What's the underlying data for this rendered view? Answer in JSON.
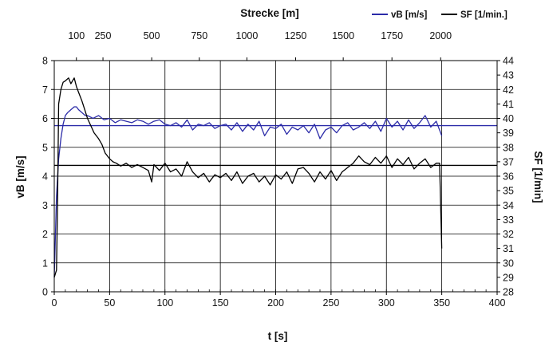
{
  "chart_data": {
    "type": "line",
    "title": "",
    "xlabel": "t [s]",
    "x2label": "Strecke [m]",
    "ylabel": "vB [m/s]",
    "y2label": "SF [1/min]",
    "xlim": [
      0,
      400
    ],
    "xticks": [
      "0",
      "50",
      "100",
      "150",
      "200",
      "250",
      "300",
      "350",
      "400"
    ],
    "x2ticks": [
      "100",
      "250",
      "500",
      "750",
      "1000",
      "1250",
      "1500",
      "1750",
      "2000"
    ],
    "x2tick_t": [
      20,
      44,
      88,
      131,
      174,
      218,
      261,
      305,
      349
    ],
    "ylim": [
      0,
      8
    ],
    "yticks": [
      "0",
      "1",
      "2",
      "3",
      "4",
      "5",
      "6",
      "7",
      "8"
    ],
    "y2lim": [
      28,
      44
    ],
    "y2ticks": [
      "28",
      "29",
      "30",
      "31",
      "32",
      "33",
      "34",
      "35",
      "36",
      "37",
      "38",
      "39",
      "40",
      "41",
      "42",
      "43",
      "44"
    ],
    "grid": true,
    "legend": "top-right",
    "reference_lines": [
      {
        "axis": "y",
        "value": 5.75,
        "color": "#2b2ba8"
      },
      {
        "axis": "y2",
        "value": 36.75,
        "color": "#000000"
      }
    ],
    "series": [
      {
        "name": "vB [m/s]",
        "axis": "y",
        "color": "#2b2ba8",
        "x": [
          0,
          2,
          4,
          6,
          8,
          10,
          12,
          15,
          18,
          20,
          22,
          25,
          28,
          30,
          35,
          40,
          45,
          50,
          55,
          60,
          65,
          70,
          75,
          80,
          85,
          90,
          95,
          100,
          105,
          110,
          115,
          120,
          125,
          130,
          135,
          140,
          145,
          150,
          155,
          160,
          165,
          170,
          175,
          180,
          185,
          190,
          195,
          200,
          205,
          210,
          215,
          220,
          225,
          230,
          235,
          240,
          245,
          250,
          255,
          260,
          265,
          270,
          275,
          280,
          285,
          290,
          295,
          300,
          305,
          310,
          315,
          320,
          325,
          330,
          335,
          340,
          345,
          350
        ],
        "y": [
          0.5,
          3.3,
          4.6,
          5.3,
          5.8,
          6.1,
          6.2,
          6.3,
          6.4,
          6.4,
          6.3,
          6.2,
          6.1,
          6.1,
          6.0,
          6.1,
          5.95,
          6.0,
          5.85,
          5.95,
          5.9,
          5.85,
          5.95,
          5.9,
          5.8,
          5.9,
          5.95,
          5.8,
          5.75,
          5.85,
          5.7,
          5.95,
          5.6,
          5.8,
          5.75,
          5.85,
          5.65,
          5.75,
          5.8,
          5.6,
          5.85,
          5.55,
          5.8,
          5.6,
          5.9,
          5.4,
          5.7,
          5.65,
          5.8,
          5.45,
          5.7,
          5.6,
          5.75,
          5.5,
          5.8,
          5.3,
          5.6,
          5.7,
          5.5,
          5.75,
          5.85,
          5.6,
          5.7,
          5.85,
          5.65,
          5.9,
          5.55,
          6.0,
          5.7,
          5.9,
          5.6,
          5.95,
          5.65,
          5.85,
          6.1,
          5.7,
          5.9,
          5.4
        ]
      },
      {
        "name": "SF [1/min.]",
        "axis": "y2",
        "color": "#000000",
        "x": [
          0,
          2,
          3,
          4,
          6,
          8,
          10,
          13,
          15,
          18,
          20,
          22,
          25,
          28,
          30,
          33,
          36,
          40,
          43,
          46,
          50,
          53,
          56,
          60,
          65,
          70,
          75,
          80,
          85,
          88,
          90,
          95,
          100,
          105,
          110,
          115,
          120,
          125,
          130,
          135,
          140,
          145,
          150,
          155,
          160,
          165,
          170,
          175,
          180,
          185,
          190,
          195,
          200,
          205,
          210,
          215,
          220,
          225,
          230,
          235,
          240,
          245,
          250,
          255,
          260,
          265,
          270,
          275,
          280,
          285,
          290,
          295,
          300,
          305,
          310,
          315,
          320,
          325,
          330,
          335,
          340,
          345,
          348,
          350
        ],
        "y": [
          29.0,
          29.5,
          34.5,
          41.0,
          42.0,
          42.5,
          42.6,
          42.8,
          42.4,
          42.8,
          42.2,
          41.8,
          41.2,
          40.5,
          40.0,
          39.5,
          39.0,
          38.6,
          38.2,
          37.6,
          37.2,
          37.0,
          36.9,
          36.7,
          36.9,
          36.6,
          36.8,
          36.6,
          36.4,
          35.6,
          36.8,
          36.4,
          36.9,
          36.3,
          36.5,
          36.0,
          37.0,
          36.3,
          35.9,
          36.2,
          35.6,
          36.1,
          35.9,
          36.2,
          35.7,
          36.3,
          35.5,
          36.0,
          36.2,
          35.6,
          36.0,
          35.4,
          36.1,
          35.8,
          36.3,
          35.5,
          36.5,
          36.6,
          36.2,
          35.6,
          36.3,
          35.8,
          36.4,
          35.7,
          36.3,
          36.6,
          36.9,
          37.4,
          37.0,
          36.8,
          37.3,
          36.9,
          37.4,
          36.6,
          37.2,
          36.8,
          37.3,
          36.5,
          36.9,
          37.2,
          36.6,
          36.9,
          36.9,
          31.0
        ]
      }
    ]
  }
}
